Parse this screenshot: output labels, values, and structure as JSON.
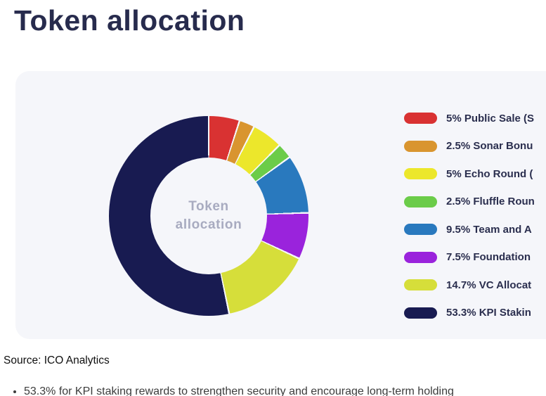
{
  "page": {
    "title": "Token allocation"
  },
  "chart_data": {
    "type": "pie",
    "variant": "donut",
    "title": "Token allocation",
    "center_label_lines": [
      "Token",
      "allocation"
    ],
    "legend_position": "right",
    "start_angle_deg": 0,
    "series": [
      {
        "label": "5% Public Sale (S",
        "value": 5,
        "color": "#d93232"
      },
      {
        "label": "2.5% Sonar Bonu",
        "value": 2.5,
        "color": "#d9952f"
      },
      {
        "label": "5% Echo Round (",
        "value": 5,
        "color": "#ece72b"
      },
      {
        "label": "2.5% Fluffle Roun",
        "value": 2.5,
        "color": "#6bcc49"
      },
      {
        "label": "9.5% Team and A",
        "value": 9.5,
        "color": "#2979be"
      },
      {
        "label": "7.5% Foundation",
        "value": 7.5,
        "color": "#9a23dc"
      },
      {
        "label": "14.7% VC Allocat",
        "value": 14.7,
        "color": "#d6de3a"
      },
      {
        "label": "53.3% KPI Stakin",
        "value": 53.3,
        "color": "#181b51"
      }
    ]
  },
  "footer": {
    "source": "Source: ICO Analytics",
    "bullets": [
      "53.3% for KPI staking rewards to strengthen security and encourage long-term holding"
    ]
  },
  "colors": {
    "card_bg": "#f5f6fa",
    "title_text": "#272b4d",
    "center_label_text": "#a8abc0",
    "legend_text": "#2a2e4e"
  }
}
